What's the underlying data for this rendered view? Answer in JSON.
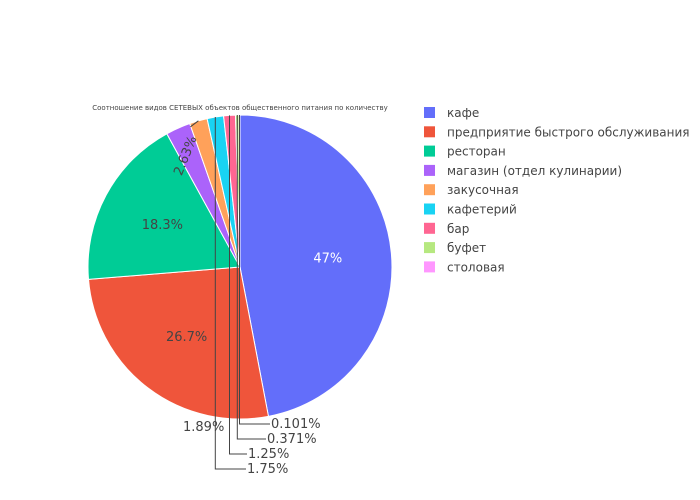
{
  "chart_data": {
    "type": "pie",
    "title": "Соотношение видов СЕТЕВЫХ объектов общественного питания по количеству",
    "legend_position": "right",
    "slices": [
      {
        "label": "кафе",
        "percent": 47,
        "percent_label": "47%",
        "color": "#636efa",
        "label_position": "inside"
      },
      {
        "label": "предприятие быстрого обслуживания",
        "percent": 26.7,
        "percent_label": "26.7%",
        "color": "#ef553b",
        "label_position": "inside"
      },
      {
        "label": "ресторан",
        "percent": 18.3,
        "percent_label": "18.3%",
        "color": "#00cc96",
        "label_position": "inside"
      },
      {
        "label": "магазин (отдел кулинарии)",
        "percent": 2.63,
        "percent_label": "2.63%",
        "color": "#ab63fa",
        "label_position": "inside"
      },
      {
        "label": "закусочная",
        "percent": 1.89,
        "percent_label": "1.89%",
        "color": "#ffa15a",
        "label_position": "outside"
      },
      {
        "label": "кафетерий",
        "percent": 1.75,
        "percent_label": "1.75%",
        "color": "#19d3f3",
        "label_position": "outside"
      },
      {
        "label": "бар",
        "percent": 1.25,
        "percent_label": "1.25%",
        "color": "#ff6692",
        "label_position": "outside"
      },
      {
        "label": "буфет",
        "percent": 0.371,
        "percent_label": "0.371%",
        "color": "#b6e880",
        "label_position": "outside"
      },
      {
        "label": "столовая",
        "percent": 0.101,
        "percent_label": "0.101%",
        "color": "#ff97ff",
        "label_position": "outside"
      }
    ]
  }
}
